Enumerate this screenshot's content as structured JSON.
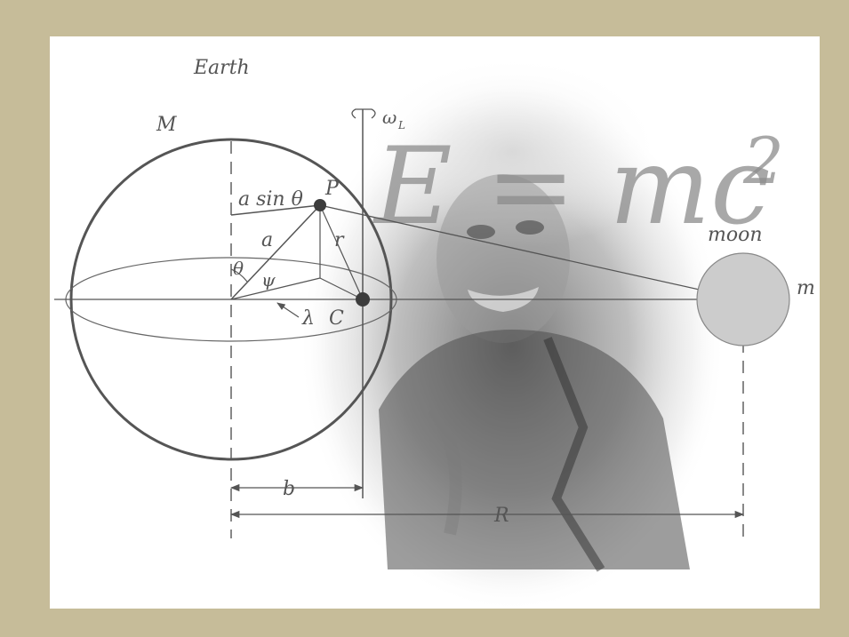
{
  "labels": {
    "earth": "Earth",
    "mass_earth": "M",
    "omega": "ω",
    "omega_sub": "L",
    "a_sin_theta": "a sin θ",
    "point_p": "P",
    "side_a": "a",
    "side_r": "r",
    "theta": "θ",
    "psi": "ψ",
    "lambda": "λ",
    "center_c": "C",
    "moon": "moon",
    "mass_moon": "m",
    "dist_b": "b",
    "dist_r": "R"
  },
  "formula": {
    "base": "E = mc",
    "exponent": "2"
  },
  "colors": {
    "frame": "#c6bc99",
    "background": "#ffffff",
    "line": "#555555",
    "moon_fill": "#cccccc",
    "photo_tone": "#6e6e6e",
    "formula": "#8c8c8c"
  },
  "photo": {
    "description_icon": "portrait-photo"
  }
}
